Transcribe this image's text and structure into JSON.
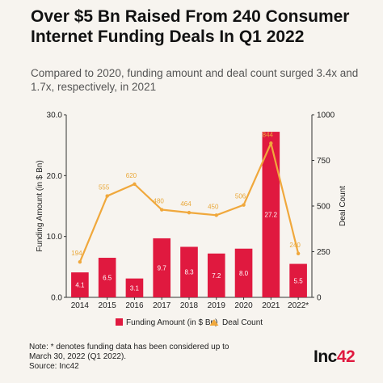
{
  "header": {
    "title": "Over $5 Bn Raised From 240 Consumer Internet Funding Deals In Q1 2022",
    "subtitle": "Compared to 2020, funding amount and deal count surged 3.4x and 1.7x, respectively, in 2021"
  },
  "chart_data": {
    "type": "bar",
    "title": "",
    "categories": [
      "2014",
      "2015",
      "2016",
      "2017",
      "2018",
      "2019",
      "2020",
      "2021",
      "2022*"
    ],
    "series": [
      {
        "name": "Funding Amount (in $ Bn)",
        "type": "bar",
        "axis": "left",
        "color": "#e0193f",
        "values": [
          4.1,
          6.5,
          3.1,
          9.7,
          8.3,
          7.2,
          8.0,
          27.2,
          5.5
        ],
        "labels": [
          "4.1",
          "6.5",
          "3.1",
          "9.7",
          "8.3",
          "7.2",
          "8.0",
          "27.2",
          "5.5"
        ]
      },
      {
        "name": "Deal Count",
        "type": "line",
        "axis": "right",
        "color": "#f0a83c",
        "values": [
          194,
          555,
          620,
          480,
          464,
          450,
          506,
          844,
          240
        ],
        "labels": [
          "194",
          "555",
          "620",
          "480",
          "464",
          "450",
          "506",
          "844",
          "240"
        ]
      }
    ],
    "ylabel": "Funding Amount (in $ Bn)",
    "y2label": "Deal Count",
    "ylim": [
      0,
      30
    ],
    "y2lim": [
      0,
      1000
    ],
    "yticks": [
      "0.0",
      "10.0",
      "20.0",
      "30.0"
    ],
    "y2ticks": [
      "0",
      "250",
      "500",
      "750",
      "1000"
    ],
    "legend_position": "bottom",
    "grid": false
  },
  "footer": {
    "note_line1": "Note: * denotes funding data has been considered up to",
    "note_line2": "March 30, 2022 (Q1 2022).",
    "source": "Source: Inc42",
    "logo_main": "Inc",
    "logo_accent": "42"
  }
}
